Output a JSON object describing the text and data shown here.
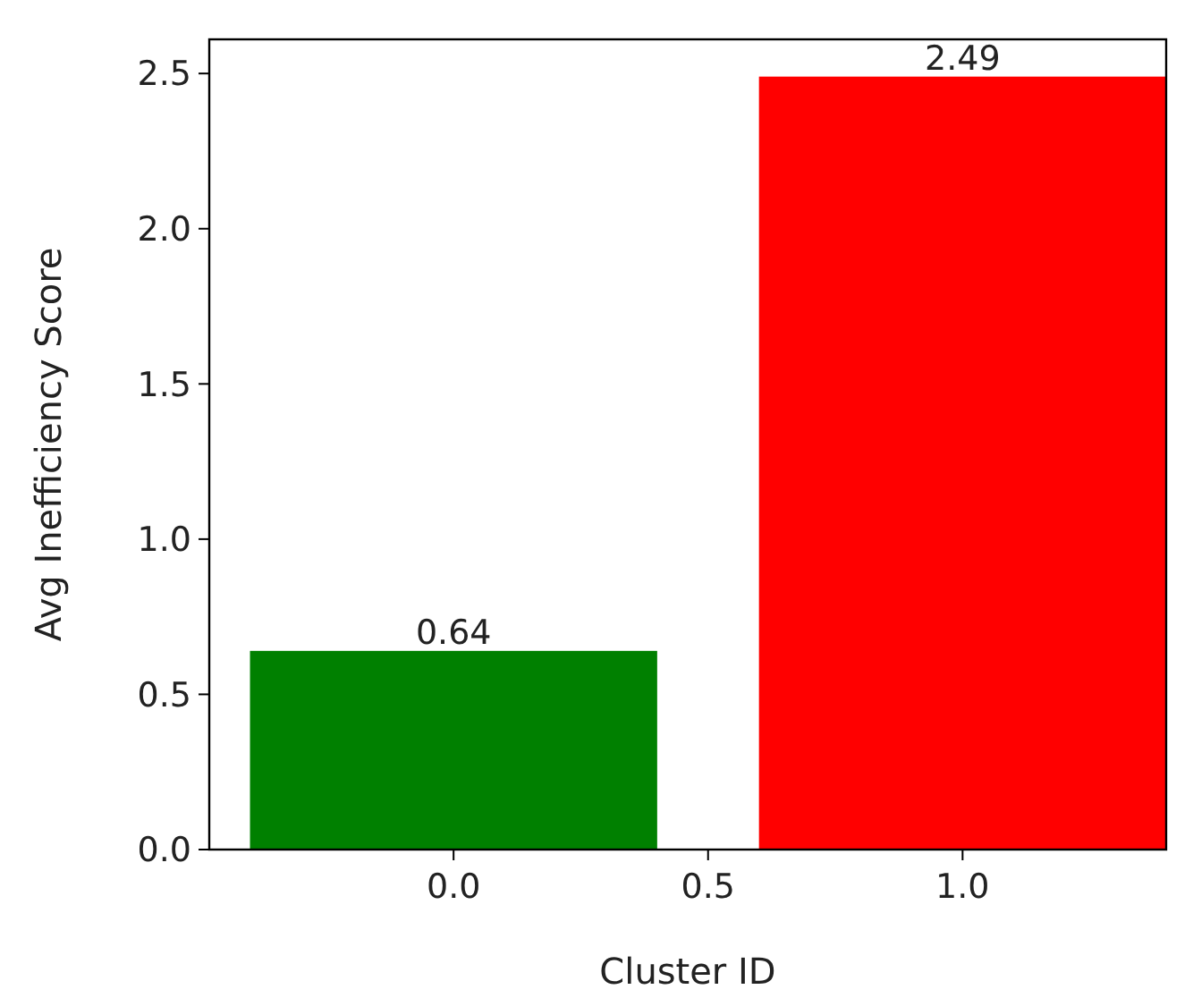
{
  "chart_data": {
    "type": "bar",
    "xlabel": "Cluster ID",
    "ylabel": "Avg Inefficiency Score",
    "x": [
      0,
      1
    ],
    "values": [
      0.64,
      2.49
    ],
    "colors": [
      "#008000",
      "#ff0000"
    ],
    "xlim": [
      -0.48,
      1.4
    ],
    "xticks": [
      {
        "value": 0,
        "label": "0.0"
      },
      {
        "value": 0.5,
        "label": "0.5"
      },
      {
        "value": 1,
        "label": "1.0"
      }
    ],
    "ylim": [
      0,
      2.61
    ],
    "yticks": [
      {
        "value": 0,
        "label": "0.0"
      },
      {
        "value": 0.5,
        "label": "0.5"
      },
      {
        "value": 1,
        "label": "1.0"
      },
      {
        "value": 1.5,
        "label": "1.5"
      },
      {
        "value": 2,
        "label": "2.0"
      },
      {
        "value": 2.5,
        "label": "2.5"
      }
    ],
    "data_labels": true
  }
}
